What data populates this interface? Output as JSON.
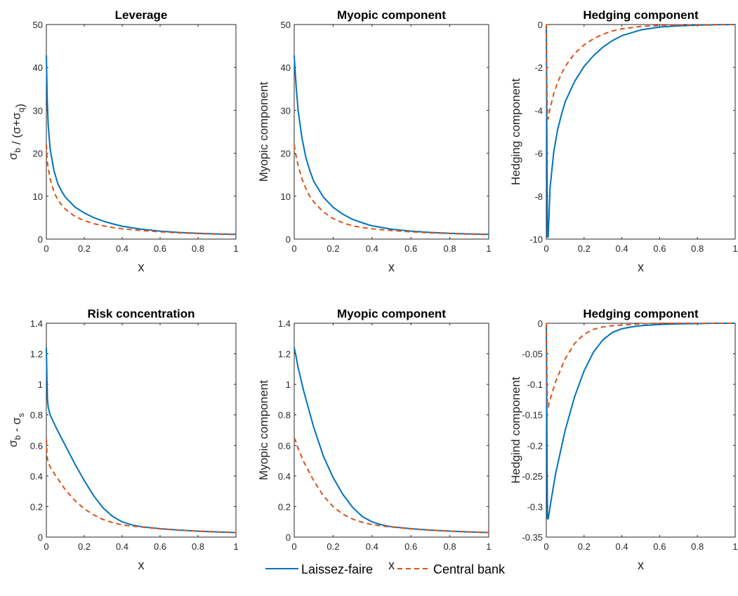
{
  "legend": {
    "laissez_faire": "Laissez-faire",
    "central_bank": "Central bank"
  },
  "colors": {
    "laissez_faire": "#0072BD",
    "central_bank": "#D95319"
  },
  "chart_data": [
    {
      "type": "line",
      "title": "Leverage",
      "xlabel": "x",
      "ylabel": "σb / (σ+σq)",
      "xlim": [
        0,
        1
      ],
      "ylim": [
        0,
        50
      ],
      "xticks": [
        "0",
        "0.2",
        "0.4",
        "0.6",
        "0.8",
        "1"
      ],
      "yticks": [
        "0",
        "10",
        "20",
        "30",
        "40",
        "50"
      ],
      "series": [
        {
          "name": "Laissez-faire",
          "style": "solid",
          "x": [
            0,
            0.005,
            0.01,
            0.02,
            0.04,
            0.06,
            0.08,
            0.1,
            0.15,
            0.2,
            0.25,
            0.3,
            0.35,
            0.4,
            0.5,
            0.6,
            0.7,
            0.8,
            0.9,
            1.0
          ],
          "y": [
            42.8,
            32.0,
            26.5,
            21.0,
            16.0,
            13.0,
            11.2,
            9.8,
            7.5,
            6.1,
            5.0,
            4.2,
            3.55,
            3.0,
            2.3,
            1.85,
            1.55,
            1.35,
            1.2,
            1.1
          ]
        },
        {
          "name": "Central bank",
          "style": "dashed",
          "x": [
            0,
            0.005,
            0.01,
            0.02,
            0.04,
            0.06,
            0.08,
            0.1,
            0.15,
            0.2,
            0.25,
            0.3,
            0.35,
            0.4,
            0.5,
            0.6,
            0.7,
            0.8,
            0.9,
            1.0
          ],
          "y": [
            22.0,
            18.0,
            16.5,
            14.0,
            11.0,
            9.2,
            8.0,
            7.0,
            5.3,
            4.3,
            3.6,
            3.1,
            2.7,
            2.4,
            2.0,
            1.7,
            1.45,
            1.3,
            1.15,
            1.05
          ]
        }
      ]
    },
    {
      "type": "line",
      "title": "Myopic component",
      "xlabel": "x",
      "ylabel": "Myopic component",
      "xlim": [
        0,
        1
      ],
      "ylim": [
        0,
        50
      ],
      "xticks": [
        "0",
        "0.2",
        "0.4",
        "0.6",
        "0.8",
        "1"
      ],
      "yticks": [
        "0",
        "10",
        "20",
        "30",
        "40",
        "50"
      ],
      "series": [
        {
          "name": "Laissez-faire",
          "style": "solid",
          "x": [
            0,
            0.005,
            0.01,
            0.02,
            0.04,
            0.06,
            0.08,
            0.1,
            0.15,
            0.2,
            0.25,
            0.3,
            0.35,
            0.4,
            0.5,
            0.6,
            0.7,
            0.8,
            0.9,
            1.0
          ],
          "y": [
            42.8,
            39.0,
            35.5,
            30.0,
            23.5,
            19.0,
            16.0,
            13.5,
            9.8,
            7.4,
            5.8,
            4.6,
            3.8,
            3.1,
            2.3,
            1.85,
            1.55,
            1.35,
            1.2,
            1.1
          ]
        },
        {
          "name": "Central bank",
          "style": "dashed",
          "x": [
            0,
            0.005,
            0.01,
            0.02,
            0.04,
            0.06,
            0.08,
            0.1,
            0.15,
            0.2,
            0.25,
            0.3,
            0.35,
            0.4,
            0.5,
            0.6,
            0.7,
            0.8,
            0.9,
            1.0
          ],
          "y": [
            22.0,
            20.5,
            19.3,
            17.2,
            14.0,
            11.8,
            10.0,
            8.7,
            6.3,
            4.8,
            3.8,
            3.1,
            2.7,
            2.4,
            2.0,
            1.7,
            1.45,
            1.3,
            1.15,
            1.05
          ]
        }
      ]
    },
    {
      "type": "line",
      "title": "Hedging component",
      "xlabel": "x",
      "ylabel": "Hedging component",
      "xlim": [
        0,
        1
      ],
      "ylim": [
        -10,
        0
      ],
      "xticks": [
        "0",
        "0.2",
        "0.4",
        "0.6",
        "0.8",
        "1"
      ],
      "yticks": [
        "-10",
        "-8",
        "-6",
        "-4",
        "-2",
        "0"
      ],
      "series": [
        {
          "name": "Laissez-faire",
          "style": "solid",
          "x": [
            0,
            0.003,
            0.006,
            0.01,
            0.02,
            0.04,
            0.06,
            0.08,
            0.1,
            0.15,
            0.2,
            0.25,
            0.3,
            0.35,
            0.4,
            0.5,
            0.6,
            0.7,
            0.8,
            0.9,
            1.0
          ],
          "y": [
            0,
            -5.0,
            -9.9,
            -9.9,
            -7.6,
            -5.9,
            -4.9,
            -4.2,
            -3.6,
            -2.65,
            -1.95,
            -1.45,
            -1.05,
            -0.75,
            -0.52,
            -0.25,
            -0.12,
            -0.06,
            -0.03,
            -0.01,
            0
          ]
        },
        {
          "name": "Central bank",
          "style": "dashed",
          "x": [
            0,
            0.003,
            0.006,
            0.01,
            0.02,
            0.04,
            0.06,
            0.08,
            0.1,
            0.15,
            0.2,
            0.25,
            0.3,
            0.35,
            0.4,
            0.5,
            0.6,
            0.7,
            0.8,
            0.9,
            1.0
          ],
          "y": [
            0,
            -2.5,
            -4.4,
            -4.4,
            -3.9,
            -3.2,
            -2.7,
            -2.3,
            -1.95,
            -1.35,
            -0.95,
            -0.66,
            -0.45,
            -0.3,
            -0.2,
            -0.09,
            -0.04,
            -0.02,
            -0.01,
            0,
            0
          ]
        }
      ]
    },
    {
      "type": "line",
      "title": "Risk concentration",
      "xlabel": "x",
      "ylabel": "σb - σs",
      "xlim": [
        0,
        1
      ],
      "ylim": [
        0,
        1.4
      ],
      "xticks": [
        "0",
        "0.2",
        "0.4",
        "0.6",
        "0.8",
        "1"
      ],
      "yticks": [
        "0",
        "0.2",
        "0.4",
        "0.6",
        "0.8",
        "1",
        "1.2",
        "1.4"
      ],
      "series": [
        {
          "name": "Laissez-faire",
          "style": "solid",
          "x": [
            0,
            0.003,
            0.006,
            0.01,
            0.02,
            0.05,
            0.1,
            0.15,
            0.2,
            0.25,
            0.3,
            0.35,
            0.4,
            0.45,
            0.5,
            0.6,
            0.7,
            0.8,
            0.9,
            1.0
          ],
          "y": [
            1.24,
            1.05,
            0.9,
            0.85,
            0.8,
            0.72,
            0.6,
            0.48,
            0.37,
            0.27,
            0.19,
            0.135,
            0.1,
            0.08,
            0.068,
            0.055,
            0.046,
            0.039,
            0.034,
            0.03
          ]
        },
        {
          "name": "Central bank",
          "style": "dashed",
          "x": [
            0,
            0.003,
            0.006,
            0.01,
            0.02,
            0.05,
            0.1,
            0.15,
            0.2,
            0.25,
            0.3,
            0.35,
            0.4,
            0.45,
            0.5,
            0.6,
            0.7,
            0.8,
            0.9,
            1.0
          ],
          "y": [
            0.64,
            0.56,
            0.51,
            0.49,
            0.46,
            0.4,
            0.31,
            0.24,
            0.185,
            0.145,
            0.115,
            0.095,
            0.08,
            0.072,
            0.066,
            0.054,
            0.045,
            0.039,
            0.034,
            0.03
          ]
        }
      ]
    },
    {
      "type": "line",
      "title": "Myopic component",
      "xlabel": "x",
      "ylabel": "Myopic component",
      "xlim": [
        0,
        1
      ],
      "ylim": [
        0,
        1.4
      ],
      "xticks": [
        "0",
        "0.2",
        "0.4",
        "0.6",
        "0.8",
        "1"
      ],
      "yticks": [
        "0",
        "0.2",
        "0.4",
        "0.6",
        "0.8",
        "1",
        "1.2",
        "1.4"
      ],
      "series": [
        {
          "name": "Laissez-faire",
          "style": "solid",
          "x": [
            0,
            0.01,
            0.02,
            0.05,
            0.1,
            0.15,
            0.2,
            0.25,
            0.3,
            0.35,
            0.4,
            0.45,
            0.5,
            0.6,
            0.7,
            0.8,
            0.9,
            1.0
          ],
          "y": [
            1.24,
            1.18,
            1.11,
            0.95,
            0.72,
            0.53,
            0.39,
            0.28,
            0.195,
            0.135,
            0.1,
            0.08,
            0.068,
            0.055,
            0.046,
            0.039,
            0.034,
            0.03
          ]
        },
        {
          "name": "Central bank",
          "style": "dashed",
          "x": [
            0,
            0.01,
            0.02,
            0.05,
            0.1,
            0.15,
            0.2,
            0.25,
            0.3,
            0.35,
            0.4,
            0.45,
            0.5,
            0.6,
            0.7,
            0.8,
            0.9,
            1.0
          ],
          "y": [
            0.65,
            0.62,
            0.58,
            0.49,
            0.37,
            0.27,
            0.2,
            0.15,
            0.118,
            0.097,
            0.082,
            0.073,
            0.066,
            0.054,
            0.045,
            0.039,
            0.034,
            0.03
          ]
        }
      ]
    },
    {
      "type": "line",
      "title": "Hedging component",
      "xlabel": "x",
      "ylabel": "Hedgind component",
      "xlim": [
        0,
        1
      ],
      "ylim": [
        -0.35,
        0
      ],
      "xticks": [
        "0",
        "0.2",
        "0.4",
        "0.6",
        "0.8",
        "1"
      ],
      "yticks": [
        "-0.35",
        "-0.3",
        "-0.25",
        "-0.2",
        "-0.15",
        "-0.1",
        "-0.05",
        "0"
      ],
      "series": [
        {
          "name": "Laissez-faire",
          "style": "solid",
          "x": [
            0,
            0.003,
            0.006,
            0.01,
            0.02,
            0.05,
            0.1,
            0.15,
            0.2,
            0.25,
            0.3,
            0.35,
            0.4,
            0.45,
            0.5,
            0.6,
            0.7,
            0.8,
            0.9,
            1.0
          ],
          "y": [
            0,
            -0.16,
            -0.32,
            -0.32,
            -0.3,
            -0.245,
            -0.175,
            -0.12,
            -0.078,
            -0.047,
            -0.027,
            -0.015,
            -0.009,
            -0.006,
            -0.004,
            -0.002,
            -0.001,
            -0.0005,
            0,
            0
          ]
        },
        {
          "name": "Central bank",
          "style": "dashed",
          "x": [
            0,
            0.003,
            0.006,
            0.01,
            0.02,
            0.05,
            0.1,
            0.15,
            0.2,
            0.25,
            0.3,
            0.35,
            0.4,
            0.45,
            0.5,
            0.6,
            0.7,
            0.8,
            0.9,
            1.0
          ],
          "y": [
            0,
            -0.07,
            -0.137,
            -0.137,
            -0.125,
            -0.095,
            -0.058,
            -0.033,
            -0.018,
            -0.01,
            -0.006,
            -0.004,
            -0.003,
            -0.002,
            -0.001,
            0,
            0,
            0,
            0,
            0
          ]
        }
      ]
    }
  ]
}
